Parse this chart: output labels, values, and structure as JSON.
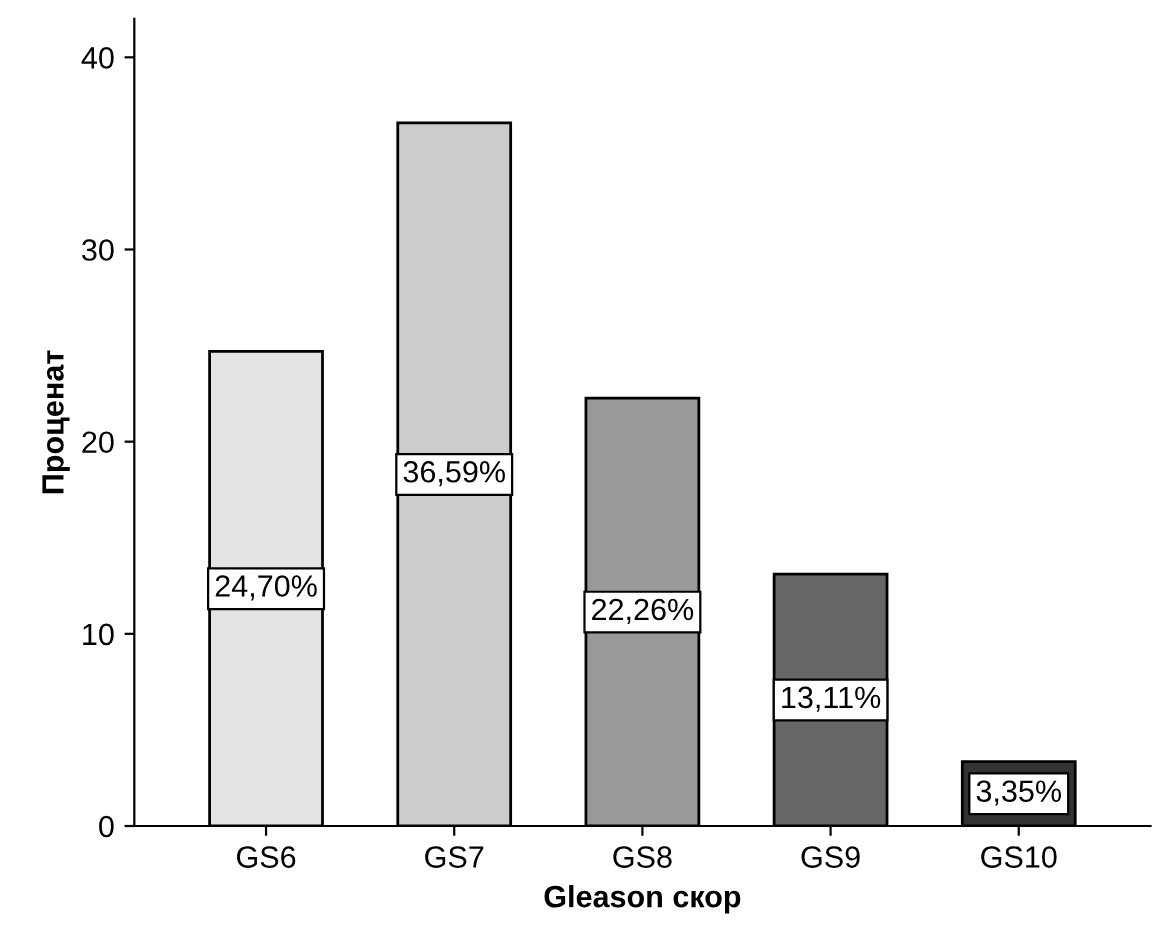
{
  "chart_data": {
    "type": "bar",
    "xlabel": "Gleason скор",
    "ylabel": "Проценат",
    "categories": [
      "GS6",
      "GS7",
      "GS8",
      "GS9",
      "GS10"
    ],
    "values": [
      24.7,
      36.59,
      22.26,
      13.11,
      3.35
    ],
    "colors": [
      "#e3e3e3",
      "#cccccc",
      "#999999",
      "#666666",
      "#333333"
    ],
    "value_labels": [
      "24,70%",
      "36,59%",
      "22,26%",
      "13,11%",
      "3,35%"
    ],
    "ylim": [
      0,
      42
    ],
    "yticks": [
      0,
      10,
      20,
      30,
      40
    ],
    "grid": false,
    "legend": false
  }
}
